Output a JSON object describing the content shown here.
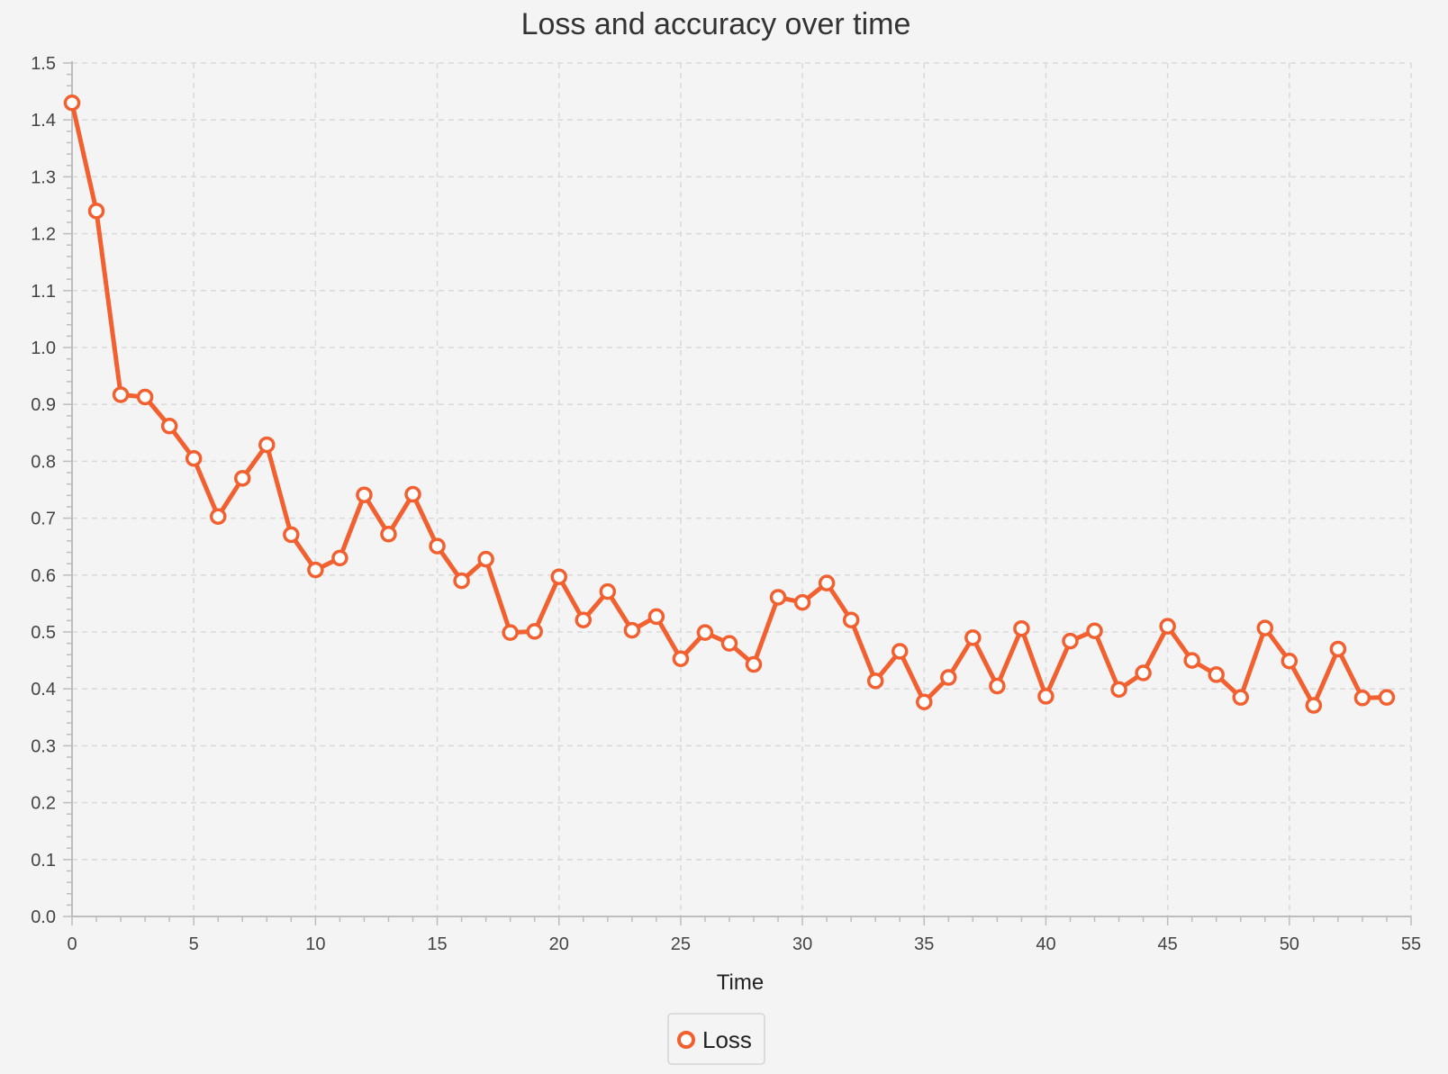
{
  "chart_data": {
    "type": "line",
    "title": "Loss and accuracy over time",
    "xlabel": "Time",
    "ylabel": "",
    "xlim": [
      0,
      55
    ],
    "ylim": [
      0,
      1.5
    ],
    "x_ticks": [
      0,
      5,
      10,
      15,
      20,
      25,
      30,
      35,
      40,
      45,
      50,
      55
    ],
    "x_tick_labels": [
      "0",
      "5",
      "10",
      "15",
      "20",
      "25",
      "30",
      "35",
      "40",
      "45",
      "50",
      "55"
    ],
    "y_ticks": [
      0,
      0.1,
      0.2,
      0.3,
      0.4,
      0.5,
      0.6,
      0.7,
      0.8,
      0.9,
      1.0,
      1.1,
      1.2,
      1.3,
      1.4,
      1.5
    ],
    "y_tick_labels": [
      "0.0",
      "0.1",
      "0.2",
      "0.3",
      "0.4",
      "0.5",
      "0.6",
      "0.7",
      "0.8",
      "0.9",
      "1.0",
      "1.1",
      "1.2",
      "1.3",
      "1.4",
      "1.5"
    ],
    "grid": true,
    "legend_position": "bottom-center",
    "series": [
      {
        "name": "Loss",
        "color": "#f26030",
        "x": [
          0,
          1,
          2,
          3,
          4,
          5,
          6,
          7,
          8,
          9,
          10,
          11,
          12,
          13,
          14,
          15,
          16,
          17,
          18,
          19,
          20,
          21,
          22,
          23,
          24,
          25,
          26,
          27,
          28,
          29,
          30,
          31,
          32,
          33,
          34,
          35,
          36,
          37,
          38,
          39,
          40,
          41,
          42,
          43,
          44,
          45,
          46,
          47,
          48,
          49,
          50,
          51,
          52,
          53,
          54
        ],
        "values": [
          1.43,
          1.24,
          0.917,
          0.913,
          0.862,
          0.805,
          0.703,
          0.77,
          0.829,
          0.671,
          0.609,
          0.63,
          0.741,
          0.672,
          0.742,
          0.651,
          0.59,
          0.628,
          0.499,
          0.501,
          0.597,
          0.521,
          0.571,
          0.503,
          0.527,
          0.453,
          0.499,
          0.48,
          0.443,
          0.561,
          0.552,
          0.586,
          0.521,
          0.414,
          0.466,
          0.377,
          0.42,
          0.49,
          0.405,
          0.506,
          0.387,
          0.484,
          0.502,
          0.399,
          0.428,
          0.51,
          0.45,
          0.425,
          0.385,
          0.507,
          0.449,
          0.371,
          0.47,
          0.384,
          0.385
        ]
      }
    ]
  }
}
